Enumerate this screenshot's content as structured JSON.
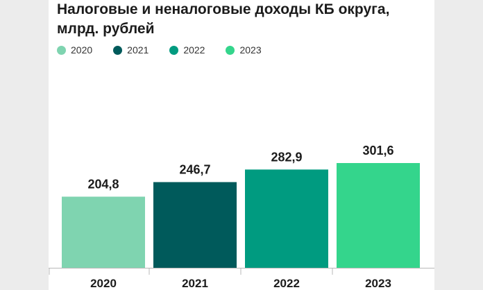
{
  "chart_data": {
    "type": "bar",
    "title_lines": [
      "Налоговые и неналоговые доходы КБ округа,",
      "млрд. рублей"
    ],
    "categories": [
      "2020",
      "2021",
      "2022",
      "2023"
    ],
    "values": [
      204.8,
      246.7,
      282.9,
      301.6
    ],
    "value_labels": [
      "204,8",
      "246,7",
      "282,9",
      "301,6"
    ],
    "colors": [
      "#7fd4b0",
      "#005a5b",
      "#009b80",
      "#34d58c"
    ],
    "legend": [
      {
        "label": "2020",
        "color": "#7fd4b0"
      },
      {
        "label": "2021",
        "color": "#005a5b"
      },
      {
        "label": "2022",
        "color": "#009b80"
      },
      {
        "label": "2023",
        "color": "#34d58c"
      }
    ],
    "legend_position": "top-left",
    "axis_color": "#b8b8b8",
    "grid": false
  }
}
